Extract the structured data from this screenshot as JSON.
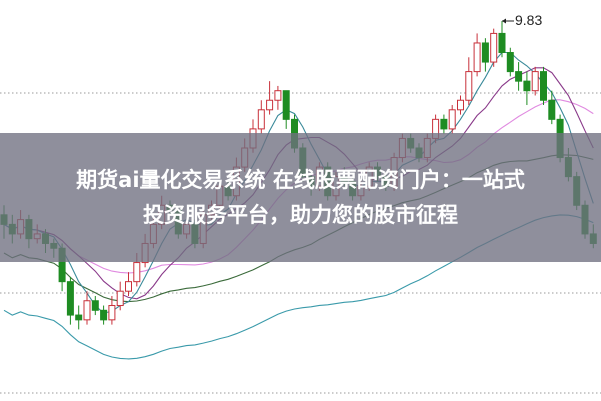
{
  "banner": {
    "line1": "期货ai量化交易系统 在线股票配资门户：一站式",
    "line2": "投资服务平台，助力您的股市征程"
  },
  "chart_data": {
    "type": "candlestick",
    "title": "",
    "xlabel": "",
    "ylabel": "",
    "ylim": [
      5.85,
      10.05
    ],
    "grid": "horizontal dotted",
    "max_label": "9.83",
    "colors": {
      "up": "#c8303a",
      "down": "#1e8c22",
      "ma_short": "#3a8a9a",
      "ma_mid": "#8a3a8a",
      "ma_pink": "#e08ae0",
      "ma_long_green": "#3a6a3a",
      "ma_long_teal": "#3a9aaa"
    },
    "candles_ohlc": [
      [
        7.8,
        7.9,
        7.55,
        7.7
      ],
      [
        7.7,
        7.8,
        7.5,
        7.6
      ],
      [
        7.6,
        7.85,
        7.55,
        7.75
      ],
      [
        7.75,
        7.8,
        7.45,
        7.55
      ],
      [
        7.55,
        7.7,
        7.5,
        7.6
      ],
      [
        7.6,
        7.65,
        7.4,
        7.5
      ],
      [
        7.5,
        7.55,
        7.35,
        7.45
      ],
      [
        7.45,
        7.5,
        7.0,
        7.1
      ],
      [
        7.1,
        7.15,
        6.65,
        6.75
      ],
      [
        6.75,
        6.85,
        6.6,
        6.7
      ],
      [
        6.7,
        7.0,
        6.65,
        6.9
      ],
      [
        6.9,
        6.95,
        6.75,
        6.8
      ],
      [
        6.8,
        6.85,
        6.65,
        6.7
      ],
      [
        6.7,
        6.95,
        6.65,
        6.85
      ],
      [
        6.85,
        7.1,
        6.8,
        7.0
      ],
      [
        7.0,
        7.2,
        6.95,
        7.1
      ],
      [
        7.1,
        7.4,
        7.05,
        7.3
      ],
      [
        7.3,
        7.6,
        7.25,
        7.5
      ],
      [
        7.5,
        7.8,
        7.45,
        7.7
      ],
      [
        7.7,
        8.0,
        7.65,
        7.9
      ],
      [
        7.9,
        7.95,
        7.8,
        7.85
      ],
      [
        7.85,
        7.9,
        7.55,
        7.6
      ],
      [
        7.6,
        7.75,
        7.55,
        7.7
      ],
      [
        7.7,
        7.75,
        7.45,
        7.5
      ],
      [
        7.5,
        7.85,
        7.45,
        7.8
      ],
      [
        7.8,
        7.95,
        7.75,
        7.9
      ],
      [
        7.9,
        8.15,
        7.85,
        8.1
      ],
      [
        8.1,
        8.15,
        7.95,
        8.0
      ],
      [
        8.0,
        8.4,
        7.95,
        8.3
      ],
      [
        8.3,
        8.6,
        8.25,
        8.5
      ],
      [
        8.5,
        8.8,
        8.45,
        8.7
      ],
      [
        8.7,
        9.0,
        8.65,
        8.9
      ],
      [
        8.9,
        9.2,
        8.85,
        9.0
      ],
      [
        9.0,
        9.15,
        8.9,
        9.1
      ],
      [
        9.1,
        9.1,
        8.7,
        8.8
      ],
      [
        8.8,
        8.85,
        8.45,
        8.5
      ],
      [
        8.5,
        8.55,
        8.15,
        8.2
      ],
      [
        8.2,
        8.25,
        8.0,
        8.1
      ],
      [
        8.1,
        8.35,
        8.05,
        8.3
      ],
      [
        8.3,
        8.35,
        7.95,
        8.0
      ],
      [
        8.0,
        8.25,
        7.95,
        8.2
      ],
      [
        8.2,
        8.3,
        8.1,
        8.15
      ],
      [
        8.15,
        8.2,
        7.95,
        8.0
      ],
      [
        8.0,
        8.15,
        7.95,
        8.1
      ],
      [
        8.1,
        8.35,
        8.05,
        8.3
      ],
      [
        8.3,
        8.35,
        8.15,
        8.2
      ],
      [
        8.2,
        8.25,
        8.05,
        8.1
      ],
      [
        8.1,
        8.45,
        8.05,
        8.4
      ],
      [
        8.4,
        8.65,
        8.35,
        8.6
      ],
      [
        8.6,
        8.65,
        8.45,
        8.5
      ],
      [
        8.5,
        8.55,
        8.35,
        8.4
      ],
      [
        8.4,
        8.65,
        8.35,
        8.6
      ],
      [
        8.6,
        8.85,
        8.55,
        8.8
      ],
      [
        8.8,
        8.85,
        8.65,
        8.7
      ],
      [
        8.7,
        8.95,
        8.65,
        8.9
      ],
      [
        8.9,
        9.05,
        8.85,
        9.0
      ],
      [
        9.0,
        9.45,
        8.95,
        9.3
      ],
      [
        9.3,
        9.7,
        9.25,
        9.6
      ],
      [
        9.6,
        9.65,
        9.3,
        9.4
      ],
      [
        9.4,
        9.75,
        9.35,
        9.7
      ],
      [
        9.7,
        9.83,
        9.45,
        9.5
      ],
      [
        9.5,
        9.55,
        9.25,
        9.3
      ],
      [
        9.3,
        9.4,
        9.1,
        9.2
      ],
      [
        9.2,
        9.3,
        8.95,
        9.1
      ],
      [
        9.1,
        9.35,
        9.05,
        9.3
      ],
      [
        9.3,
        9.35,
        8.95,
        9.0
      ],
      [
        9.0,
        9.1,
        8.75,
        8.8
      ],
      [
        8.8,
        8.85,
        8.35,
        8.4
      ],
      [
        8.4,
        8.5,
        8.15,
        8.2
      ],
      [
        8.2,
        8.25,
        7.85,
        7.9
      ],
      [
        7.9,
        7.95,
        7.55,
        7.6
      ],
      [
        7.6,
        7.7,
        7.45,
        7.5
      ]
    ]
  }
}
